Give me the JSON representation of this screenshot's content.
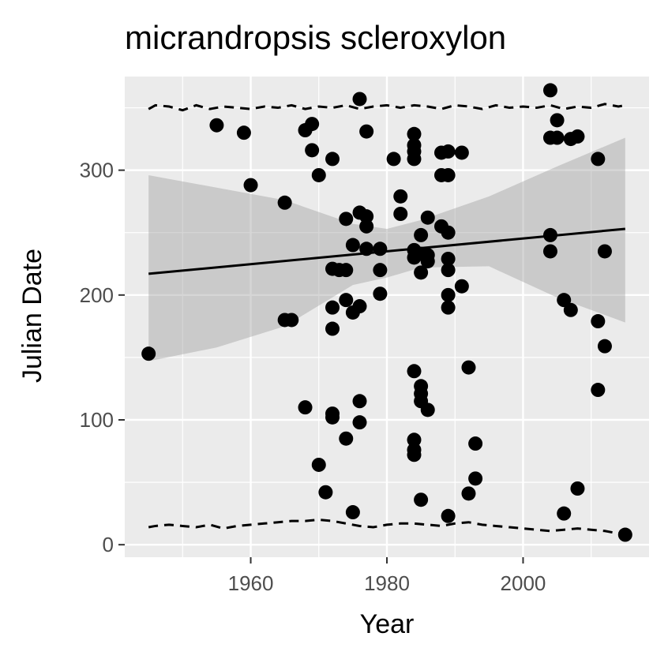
{
  "chart_data": {
    "type": "scatter",
    "title": "micrandropsis scleroxylon",
    "xlabel": "Year",
    "ylabel": "Julian Date",
    "xlim": [
      1941.5,
      2018.5
    ],
    "ylim": [
      -10,
      375
    ],
    "x_ticks": [
      1960,
      1980,
      2000
    ],
    "y_ticks": [
      0,
      100,
      200,
      300
    ],
    "x_tick_labels": [
      "1960",
      "1980",
      "2000"
    ],
    "y_tick_labels": [
      "0",
      "100",
      "200",
      "300"
    ],
    "grid": true,
    "panel_background": "#ebebeb",
    "point_color": "#000000",
    "points": [
      {
        "x": 1945,
        "y": 153
      },
      {
        "x": 1955,
        "y": 336
      },
      {
        "x": 1959,
        "y": 330
      },
      {
        "x": 1960,
        "y": 288
      },
      {
        "x": 1965,
        "y": 274
      },
      {
        "x": 1965,
        "y": 180
      },
      {
        "x": 1966,
        "y": 180
      },
      {
        "x": 1968,
        "y": 332
      },
      {
        "x": 1968,
        "y": 110
      },
      {
        "x": 1969,
        "y": 337
      },
      {
        "x": 1969,
        "y": 316
      },
      {
        "x": 1970,
        "y": 296
      },
      {
        "x": 1970,
        "y": 64
      },
      {
        "x": 1971,
        "y": 42
      },
      {
        "x": 1972,
        "y": 309
      },
      {
        "x": 1972,
        "y": 221
      },
      {
        "x": 1972,
        "y": 190
      },
      {
        "x": 1972,
        "y": 173
      },
      {
        "x": 1972,
        "y": 105
      },
      {
        "x": 1972,
        "y": 102
      },
      {
        "x": 1973,
        "y": 220
      },
      {
        "x": 1974,
        "y": 261
      },
      {
        "x": 1974,
        "y": 220
      },
      {
        "x": 1974,
        "y": 196
      },
      {
        "x": 1974,
        "y": 85
      },
      {
        "x": 1975,
        "y": 240
      },
      {
        "x": 1975,
        "y": 186
      },
      {
        "x": 1975,
        "y": 26
      },
      {
        "x": 1976,
        "y": 357
      },
      {
        "x": 1976,
        "y": 266
      },
      {
        "x": 1976,
        "y": 191
      },
      {
        "x": 1976,
        "y": 115
      },
      {
        "x": 1976,
        "y": 98
      },
      {
        "x": 1977,
        "y": 331
      },
      {
        "x": 1977,
        "y": 263
      },
      {
        "x": 1977,
        "y": 255
      },
      {
        "x": 1977,
        "y": 237
      },
      {
        "x": 1979,
        "y": 237
      },
      {
        "x": 1979,
        "y": 220
      },
      {
        "x": 1979,
        "y": 201
      },
      {
        "x": 1981,
        "y": 309
      },
      {
        "x": 1982,
        "y": 279
      },
      {
        "x": 1982,
        "y": 265
      },
      {
        "x": 1984,
        "y": 329
      },
      {
        "x": 1984,
        "y": 320
      },
      {
        "x": 1984,
        "y": 315
      },
      {
        "x": 1984,
        "y": 309
      },
      {
        "x": 1984,
        "y": 236
      },
      {
        "x": 1984,
        "y": 230
      },
      {
        "x": 1984,
        "y": 139
      },
      {
        "x": 1984,
        "y": 84
      },
      {
        "x": 1984,
        "y": 76
      },
      {
        "x": 1984,
        "y": 72
      },
      {
        "x": 1985,
        "y": 248
      },
      {
        "x": 1985,
        "y": 233
      },
      {
        "x": 1985,
        "y": 218
      },
      {
        "x": 1985,
        "y": 127
      },
      {
        "x": 1985,
        "y": 121
      },
      {
        "x": 1985,
        "y": 115
      },
      {
        "x": 1985,
        "y": 36
      },
      {
        "x": 1986,
        "y": 262
      },
      {
        "x": 1986,
        "y": 232
      },
      {
        "x": 1986,
        "y": 227
      },
      {
        "x": 1986,
        "y": 108
      },
      {
        "x": 1988,
        "y": 314
      },
      {
        "x": 1988,
        "y": 296
      },
      {
        "x": 1988,
        "y": 255
      },
      {
        "x": 1989,
        "y": 315
      },
      {
        "x": 1989,
        "y": 296
      },
      {
        "x": 1989,
        "y": 250
      },
      {
        "x": 1989,
        "y": 229
      },
      {
        "x": 1989,
        "y": 220
      },
      {
        "x": 1989,
        "y": 200
      },
      {
        "x": 1989,
        "y": 190
      },
      {
        "x": 1989,
        "y": 23
      },
      {
        "x": 1991,
        "y": 314
      },
      {
        "x": 1991,
        "y": 207
      },
      {
        "x": 1992,
        "y": 142
      },
      {
        "x": 1992,
        "y": 41
      },
      {
        "x": 1993,
        "y": 81
      },
      {
        "x": 1993,
        "y": 53
      },
      {
        "x": 2004,
        "y": 364
      },
      {
        "x": 2004,
        "y": 326
      },
      {
        "x": 2004,
        "y": 248
      },
      {
        "x": 2004,
        "y": 235
      },
      {
        "x": 2005,
        "y": 340
      },
      {
        "x": 2005,
        "y": 326
      },
      {
        "x": 2006,
        "y": 196
      },
      {
        "x": 2006,
        "y": 25
      },
      {
        "x": 2007,
        "y": 325
      },
      {
        "x": 2007,
        "y": 188
      },
      {
        "x": 2008,
        "y": 327
      },
      {
        "x": 2008,
        "y": 45
      },
      {
        "x": 2011,
        "y": 309
      },
      {
        "x": 2011,
        "y": 179
      },
      {
        "x": 2011,
        "y": 124
      },
      {
        "x": 2012,
        "y": 235
      },
      {
        "x": 2012,
        "y": 159
      },
      {
        "x": 2015,
        "y": 8
      }
    ],
    "trend_line": {
      "x": [
        1945,
        2015
      ],
      "y": [
        217,
        253
      ]
    },
    "confidence_band": {
      "x": [
        1945,
        1955,
        1965,
        1975,
        1980,
        1985,
        1995,
        2005,
        2015
      ],
      "lower": [
        147,
        158,
        175,
        208,
        214,
        222,
        223,
        198,
        178
      ],
      "upper": [
        296,
        286,
        276,
        257,
        253,
        260,
        279,
        303,
        326
      ]
    },
    "upper_dashed": {
      "x": [
        1945,
        1946,
        1948,
        1950,
        1952,
        1954,
        1956,
        1958,
        1960,
        1962,
        1964,
        1966,
        1968,
        1970,
        1972,
        1974,
        1976,
        1978,
        1980,
        1982,
        1984,
        1986,
        1988,
        1990,
        1992,
        1994,
        1996,
        1998,
        2000,
        2002,
        2004,
        2006,
        2008,
        2010,
        2012,
        2014,
        2015
      ],
      "y": [
        349,
        352,
        351,
        348,
        352,
        349,
        351,
        350,
        349,
        351,
        350,
        352,
        349,
        351,
        350,
        352,
        349,
        351,
        352,
        350,
        352,
        351,
        349,
        352,
        351,
        349,
        352,
        350,
        351,
        350,
        352,
        349,
        351,
        350,
        353,
        351,
        352
      ]
    },
    "lower_dashed": {
      "x": [
        1945,
        1946,
        1948,
        1950,
        1952,
        1954,
        1956,
        1958,
        1960,
        1962,
        1964,
        1966,
        1968,
        1970,
        1972,
        1974,
        1976,
        1978,
        1980,
        1982,
        1984,
        1986,
        1988,
        1990,
        1992,
        1994,
        1996,
        1998,
        2000,
        2002,
        2004,
        2006,
        2008,
        2010,
        2012,
        2014,
        2015
      ],
      "y": [
        14,
        15,
        16,
        15,
        14,
        16,
        13,
        15,
        16,
        17,
        18,
        19,
        19,
        20,
        19,
        17,
        15,
        14,
        16,
        17,
        17,
        16,
        15,
        17,
        18,
        16,
        15,
        14,
        13,
        12,
        11,
        12,
        13,
        12,
        11,
        9,
        10
      ]
    }
  }
}
